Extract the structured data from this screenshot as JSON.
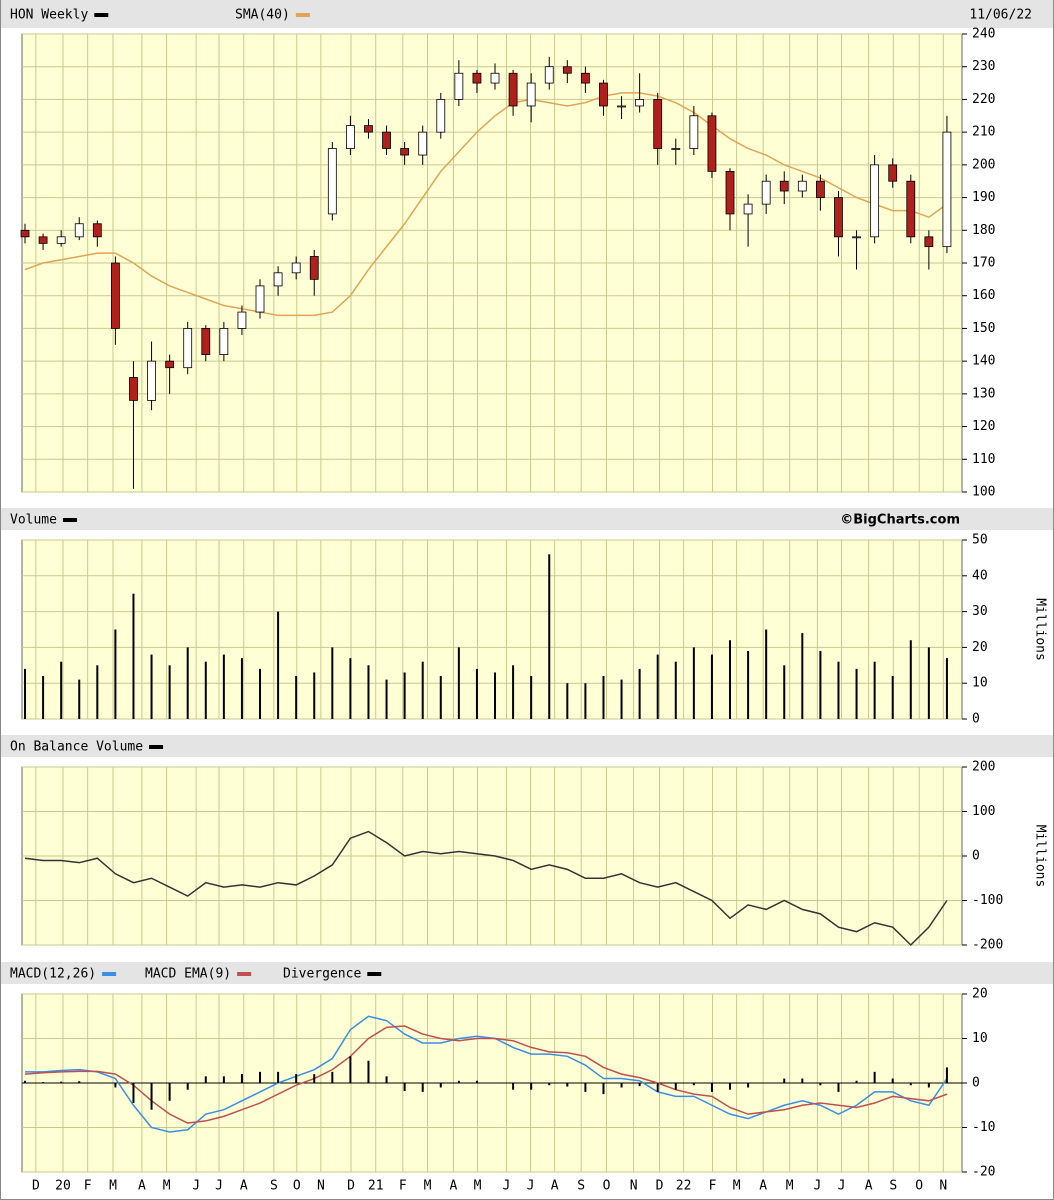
{
  "chart_data": [
    {
      "type": "candlestick",
      "title": "HON Weekly",
      "date": "11/06/22",
      "x": [
        0,
        3,
        6,
        9,
        12,
        15,
        18,
        21,
        24,
        27,
        30,
        33,
        36,
        39,
        42,
        45,
        48,
        51,
        54,
        57,
        60,
        63,
        66,
        69,
        72,
        75,
        78,
        81,
        84,
        87,
        90,
        93,
        96,
        99,
        102,
        105,
        108,
        111,
        114,
        117,
        120,
        123,
        126,
        129,
        132,
        135,
        138,
        141,
        144,
        147,
        150,
        153
      ],
      "open": [
        180,
        178,
        176,
        178,
        182,
        170,
        135,
        128,
        140,
        138,
        150,
        142,
        150,
        155,
        163,
        167,
        172,
        185,
        205,
        212,
        210,
        205,
        203,
        210,
        220,
        228,
        225,
        228,
        218,
        225,
        230,
        228,
        225,
        218,
        218,
        220,
        205,
        205,
        215,
        198,
        185,
        188,
        195,
        192,
        195,
        190,
        178,
        178,
        200,
        195,
        178,
        175
      ],
      "high": [
        182,
        179,
        180,
        184,
        183,
        172,
        140,
        146,
        142,
        152,
        151,
        152,
        157,
        165,
        169,
        172,
        174,
        207,
        215,
        214,
        212,
        207,
        212,
        222,
        232,
        229,
        231,
        229,
        228,
        233,
        232,
        230,
        226,
        221,
        228,
        222,
        208,
        218,
        216,
        199,
        191,
        197,
        198,
        197,
        197,
        192,
        180,
        203,
        202,
        197,
        180,
        215
      ],
      "low": [
        176,
        174,
        175,
        177,
        175,
        145,
        101,
        125,
        130,
        136,
        140,
        140,
        148,
        153,
        160,
        165,
        160,
        183,
        203,
        208,
        203,
        200,
        200,
        208,
        218,
        222,
        223,
        215,
        213,
        223,
        225,
        222,
        215,
        214,
        216,
        200,
        200,
        203,
        196,
        180,
        175,
        185,
        188,
        190,
        186,
        172,
        168,
        176,
        193,
        176,
        168,
        173
      ],
      "close": [
        178,
        176,
        178,
        182,
        178,
        150,
        128,
        140,
        138,
        150,
        142,
        150,
        155,
        163,
        167,
        170,
        165,
        205,
        212,
        210,
        205,
        203,
        210,
        220,
        228,
        225,
        228,
        218,
        225,
        230,
        228,
        225,
        218,
        218,
        220,
        205,
        205,
        215,
        198,
        185,
        188,
        195,
        192,
        195,
        190,
        178,
        178,
        200,
        195,
        178,
        175,
        210
      ],
      "series": [
        {
          "name": "SMA(40)",
          "color": "#e0a555",
          "values": [
            168,
            170,
            171,
            172,
            173,
            173,
            170,
            166,
            163,
            161,
            159,
            157,
            156,
            155,
            154,
            154,
            154,
            155,
            160,
            168,
            175,
            182,
            190,
            198,
            204,
            210,
            215,
            219,
            220,
            219,
            218,
            219,
            221,
            222,
            222,
            221,
            219,
            216,
            212,
            208,
            205,
            203,
            200,
            198,
            196,
            193,
            190,
            188,
            186,
            186,
            184,
            188
          ]
        }
      ],
      "xlim": [
        -0.5,
        155.5
      ],
      "ylim": [
        100,
        240
      ],
      "yticks": [
        100,
        110,
        120,
        130,
        140,
        150,
        160,
        170,
        180,
        190,
        200,
        210,
        220,
        230,
        240
      ],
      "grid": true
    },
    {
      "type": "bar",
      "title": "Volume",
      "credit": "©BigCharts.com",
      "y_label": "Millions",
      "color": "#000000",
      "x": [
        0,
        3,
        6,
        9,
        12,
        15,
        18,
        21,
        24,
        27,
        30,
        33,
        36,
        39,
        42,
        45,
        48,
        51,
        54,
        57,
        60,
        63,
        66,
        69,
        72,
        75,
        78,
        81,
        84,
        87,
        90,
        93,
        96,
        99,
        102,
        105,
        108,
        111,
        114,
        117,
        120,
        123,
        126,
        129,
        132,
        135,
        138,
        141,
        144,
        147,
        150,
        153
      ],
      "values": [
        14,
        12,
        16,
        11,
        15,
        25,
        35,
        18,
        15,
        20,
        16,
        18,
        17,
        14,
        30,
        12,
        13,
        20,
        17,
        15,
        11,
        13,
        16,
        12,
        20,
        14,
        13,
        15,
        12,
        46,
        10,
        10,
        12,
        11,
        14,
        18,
        16,
        20,
        18,
        22,
        19,
        25,
        15,
        24,
        19,
        16,
        14,
        16,
        12,
        22,
        20,
        17
      ],
      "xlim": [
        -0.5,
        155.5
      ],
      "ylim": [
        0,
        50
      ],
      "yticks": [
        0,
        10,
        20,
        30,
        40,
        50
      ],
      "grid": true
    },
    {
      "type": "line",
      "title": "On Balance Volume",
      "y_label": "Millions",
      "color": "#333333",
      "x": [
        0,
        3,
        6,
        9,
        12,
        15,
        18,
        21,
        24,
        27,
        30,
        33,
        36,
        39,
        42,
        45,
        48,
        51,
        54,
        57,
        60,
        63,
        66,
        69,
        72,
        75,
        78,
        81,
        84,
        87,
        90,
        93,
        96,
        99,
        102,
        105,
        108,
        111,
        114,
        117,
        120,
        123,
        126,
        129,
        132,
        135,
        138,
        141,
        144,
        147,
        150,
        153
      ],
      "values": [
        -5,
        -10,
        -10,
        -15,
        -5,
        -40,
        -60,
        -50,
        -70,
        -90,
        -60,
        -70,
        -65,
        -70,
        -60,
        -65,
        -45,
        -20,
        40,
        55,
        30,
        0,
        10,
        5,
        10,
        5,
        0,
        -10,
        -30,
        -20,
        -30,
        -50,
        -50,
        -40,
        -60,
        -70,
        -60,
        -80,
        -100,
        -140,
        -110,
        -120,
        -100,
        -120,
        -130,
        -160,
        -170,
        -150,
        -160,
        -200,
        -160,
        -100
      ],
      "xlim": [
        -0.5,
        155.5
      ],
      "ylim": [
        -200,
        200
      ],
      "yticks": [
        -200,
        -100,
        0,
        100,
        200
      ],
      "grid": true
    },
    {
      "type": "macd",
      "x": [
        0,
        3,
        6,
        9,
        12,
        15,
        18,
        21,
        24,
        27,
        30,
        33,
        36,
        39,
        42,
        45,
        48,
        51,
        54,
        57,
        60,
        63,
        66,
        69,
        72,
        75,
        78,
        81,
        84,
        87,
        90,
        93,
        96,
        99,
        102,
        105,
        108,
        111,
        114,
        117,
        120,
        123,
        126,
        129,
        132,
        135,
        138,
        141,
        144,
        147,
        150,
        153
      ],
      "series": [
        {
          "name": "MACD(12,26)",
          "color": "#3a8ee6",
          "values": [
            2.5,
            2.5,
            2.8,
            3,
            2.5,
            1,
            -5,
            -10,
            -11,
            -10.5,
            -7,
            -6,
            -4,
            -2,
            0,
            1.5,
            3,
            5.5,
            12,
            15,
            14,
            11,
            9,
            9,
            10,
            10.5,
            10,
            8,
            6.5,
            6.5,
            6,
            4,
            1,
            1,
            0.5,
            -2,
            -3,
            -3,
            -5,
            -7,
            -8,
            -6.5,
            -5,
            -4,
            -5,
            -7,
            -5,
            -2,
            -2,
            -4,
            -5,
            1
          ]
        },
        {
          "name": "MACD EMA(9)",
          "color": "#c0504d",
          "values": [
            2,
            2.3,
            2.5,
            2.6,
            2.6,
            2,
            -0.5,
            -4,
            -7,
            -9,
            -8.5,
            -7.5,
            -6,
            -4.5,
            -2.5,
            -0.5,
            1,
            3,
            6,
            10,
            12.5,
            12.8,
            11,
            10,
            9.5,
            10,
            10,
            9.5,
            8,
            7,
            6.8,
            6,
            3.5,
            2,
            1.2,
            0,
            -1.5,
            -2.5,
            -3,
            -5.5,
            -7,
            -6.5,
            -6,
            -5,
            -4.5,
            -5,
            -5.5,
            -4.5,
            -3,
            -3.5,
            -4,
            -2.5
          ]
        },
        {
          "name": "Divergence",
          "color": "#000000",
          "values": [
            0.5,
            0.2,
            0.3,
            0.4,
            -0.1,
            -1,
            -4.5,
            -6,
            -4,
            -1.5,
            1.5,
            1.5,
            2,
            2.5,
            2.5,
            2,
            2,
            2.5,
            6,
            5,
            1.5,
            -1.8,
            -2,
            -1,
            0.5,
            0.5,
            0,
            -1.5,
            -1.5,
            -0.5,
            -0.8,
            -2,
            -2.5,
            -1,
            -0.7,
            -2,
            -1.5,
            -0.5,
            -2,
            -1.5,
            -1,
            0,
            1,
            1,
            -0.5,
            -2,
            0.5,
            2.5,
            1,
            -0.5,
            -1,
            3.5
          ]
        }
      ],
      "xlim": [
        -0.5,
        155.5
      ],
      "ylim": [
        -20,
        20
      ],
      "yticks": [
        -20,
        -10,
        0,
        10,
        20
      ],
      "grid": true,
      "xticks": [
        {
          "value": 1.8,
          "label": "D"
        },
        {
          "value": 6.3,
          "label": "20"
        },
        {
          "value": 10.4,
          "label": "F"
        },
        {
          "value": 14.6,
          "label": "M"
        },
        {
          "value": 19.4,
          "label": "A"
        },
        {
          "value": 23.5,
          "label": "M"
        },
        {
          "value": 28.4,
          "label": "J"
        },
        {
          "value": 32.2,
          "label": "J"
        },
        {
          "value": 36.3,
          "label": "A"
        },
        {
          "value": 41.3,
          "label": "S"
        },
        {
          "value": 45.1,
          "label": "O"
        },
        {
          "value": 49.1,
          "label": "N"
        },
        {
          "value": 54.1,
          "label": "D"
        },
        {
          "value": 58.2,
          "label": "21"
        },
        {
          "value": 62.7,
          "label": "F"
        },
        {
          "value": 66.8,
          "label": "M"
        },
        {
          "value": 71.1,
          "label": "A"
        },
        {
          "value": 75.1,
          "label": "M"
        },
        {
          "value": 79.9,
          "label": "J"
        },
        {
          "value": 83.9,
          "label": "J"
        },
        {
          "value": 87.9,
          "label": "A"
        },
        {
          "value": 92.3,
          "label": "S"
        },
        {
          "value": 96.5,
          "label": "O"
        },
        {
          "value": 101,
          "label": "N"
        },
        {
          "value": 105.3,
          "label": "D"
        },
        {
          "value": 109.3,
          "label": "22"
        },
        {
          "value": 114.1,
          "label": "F"
        },
        {
          "value": 118.1,
          "label": "M"
        },
        {
          "value": 122.5,
          "label": "A"
        },
        {
          "value": 126.9,
          "label": "M"
        },
        {
          "value": 131.5,
          "label": "J"
        },
        {
          "value": 135.5,
          "label": "J"
        },
        {
          "value": 140,
          "label": "A"
        },
        {
          "value": 144.1,
          "label": "S"
        },
        {
          "value": 148.4,
          "label": "O"
        },
        {
          "value": 152.4,
          "label": "N"
        }
      ]
    }
  ]
}
